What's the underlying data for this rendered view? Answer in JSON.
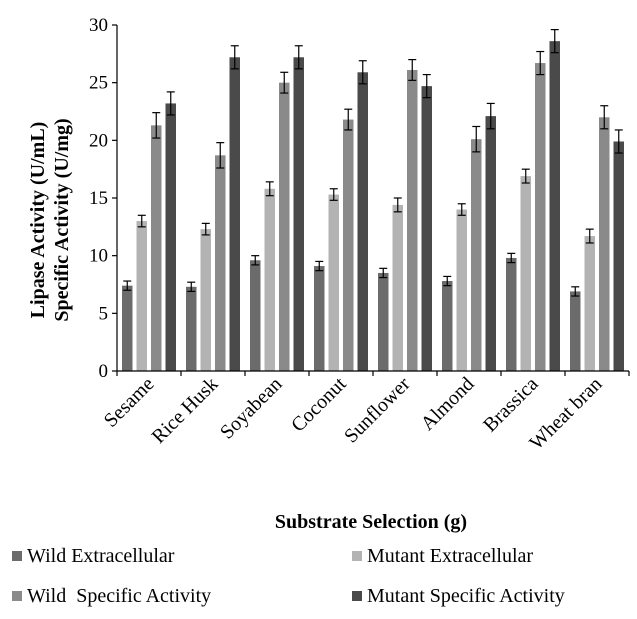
{
  "chart_data": {
    "type": "bar",
    "title": "",
    "xlabel": "Substrate Selection (g)",
    "ylabel_lines": [
      "Lipase Activity (U/mL)",
      "Specific Activity (U/mg)"
    ],
    "ylim": [
      0,
      30
    ],
    "yticks": [
      "0",
      "5",
      "10",
      "15",
      "20",
      "25",
      "30"
    ],
    "categories": [
      "Sesame",
      "Rice Husk",
      "Soyabean",
      "Coconut",
      "Sunflower",
      "Almond",
      "Brassica",
      "Wheat bran"
    ],
    "series": [
      {
        "name": "Wild Extracellular",
        "color": "#6b6b6b",
        "values": [
          7.4,
          7.3,
          9.6,
          9.1,
          8.5,
          7.8,
          9.8,
          6.9
        ],
        "errors": [
          0.4,
          0.4,
          0.4,
          0.4,
          0.4,
          0.4,
          0.4,
          0.4
        ]
      },
      {
        "name": "Mutant Extracellular",
        "color": "#b3b3b3",
        "values": [
          13.0,
          12.3,
          15.8,
          15.3,
          14.4,
          14.0,
          16.9,
          11.7
        ],
        "errors": [
          0.5,
          0.5,
          0.6,
          0.5,
          0.6,
          0.5,
          0.6,
          0.6
        ]
      },
      {
        "name": "Wild  Specific Activity",
        "color": "#8a8a8a",
        "values": [
          21.3,
          18.7,
          25.0,
          21.8,
          26.1,
          20.1,
          26.7,
          22.0
        ],
        "errors": [
          1.1,
          1.1,
          0.9,
          0.9,
          0.9,
          1.1,
          1.0,
          1.0
        ]
      },
      {
        "name": "Mutant Specific Activity",
        "color": "#4a4a4a",
        "values": [
          23.2,
          27.2,
          27.2,
          25.9,
          24.7,
          22.1,
          28.6,
          19.9
        ],
        "errors": [
          1.0,
          1.0,
          1.0,
          1.0,
          1.0,
          1.1,
          1.0,
          1.0
        ]
      }
    ],
    "grid": false,
    "error_bars": true,
    "legend_position": "bottom"
  }
}
